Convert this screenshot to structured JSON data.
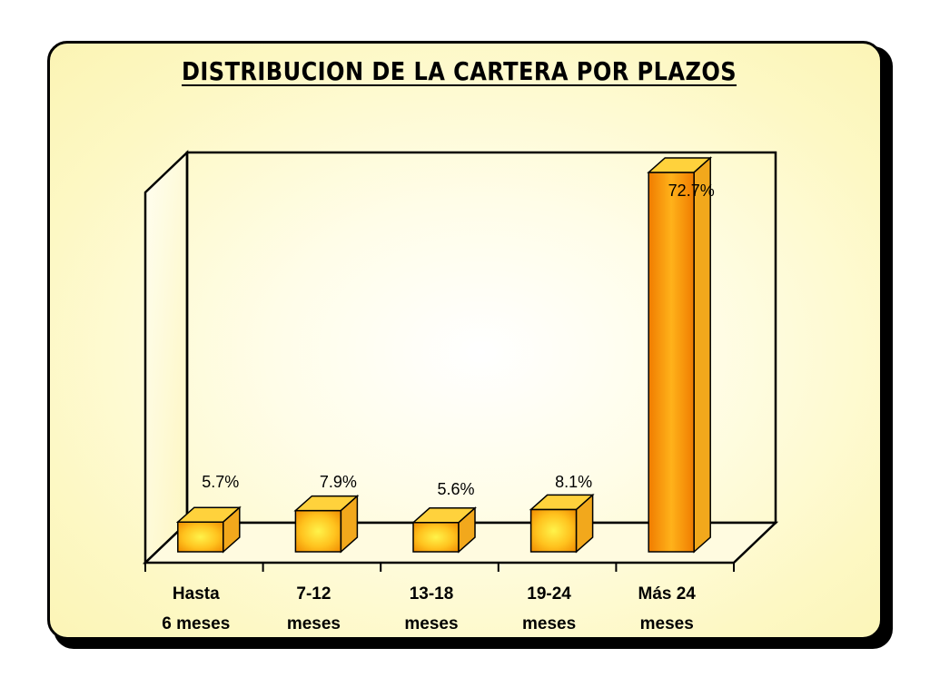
{
  "chart_data": {
    "type": "bar",
    "title": "DISTRIBUCION DE LA CARTERA POR PLAZOS",
    "categories": [
      [
        "Hasta",
        "6 meses"
      ],
      [
        "7-12",
        "meses"
      ],
      [
        "13-18",
        "meses"
      ],
      [
        "19-24",
        "meses"
      ],
      [
        "Más 24",
        "meses"
      ]
    ],
    "values": [
      5.7,
      7.9,
      5.6,
      8.1,
      72.7
    ],
    "value_labels": [
      "5.7%",
      "7.9%",
      "5.6%",
      "8.1%",
      "72.7%"
    ],
    "unit": "%",
    "ylim": [
      0,
      80
    ],
    "grid": false,
    "legend": "none",
    "colors": {
      "bar_front_light": "#ffe040",
      "bar_front_dark": "#f08a00",
      "bar_top": "#ffd23c",
      "bar_side": "#f2a81c",
      "panel": "#fdf8c4"
    }
  }
}
